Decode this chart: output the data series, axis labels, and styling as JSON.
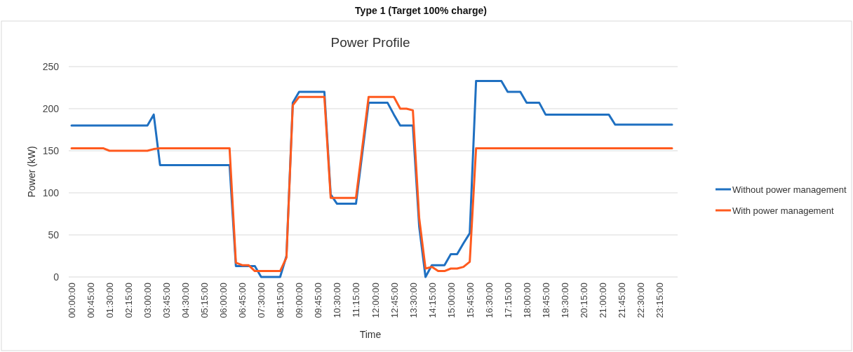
{
  "chart_data": {
    "type": "line",
    "title": "Type 1 (Target 100% charge)",
    "subtitle": "Power Profile",
    "xlabel": "Time",
    "ylabel": "Power (kW)",
    "categories": [
      "00:00:00",
      null,
      null,
      "00:45:00",
      null,
      null,
      "01:30:00",
      null,
      null,
      "02:15:00",
      null,
      null,
      "03:00:00",
      null,
      null,
      "03:45:00",
      null,
      null,
      "04:30:00",
      null,
      null,
      "05:15:00",
      null,
      null,
      "06:00:00",
      null,
      null,
      "06:45:00",
      null,
      null,
      "07:30:00",
      null,
      null,
      "08:15:00",
      null,
      null,
      "09:00:00",
      null,
      null,
      "09:45:00",
      null,
      null,
      "10:30:00",
      null,
      null,
      "11:15:00",
      null,
      null,
      "12:00:00",
      null,
      null,
      "12:45:00",
      null,
      null,
      "13:30:00",
      null,
      null,
      "14:15:00",
      null,
      null,
      "15:00:00",
      null,
      null,
      "15:45:00",
      null,
      null,
      "16:30:00",
      null,
      null,
      "17:15:00",
      null,
      null,
      "18:00:00",
      null,
      null,
      "18:45:00",
      null,
      null,
      "19:30:00",
      null,
      null,
      "20:15:00",
      null,
      null,
      "21:00:00",
      null,
      null,
      "21:45:00",
      null,
      null,
      "22:30:00",
      null,
      null,
      "23:15:00",
      null,
      null
    ],
    "series": [
      {
        "name": "Without power management",
        "color": "#1f70c1",
        "values": [
          180,
          180,
          180,
          180,
          180,
          180,
          180,
          180,
          180,
          180,
          180,
          180,
          180,
          193,
          133,
          133,
          133,
          133,
          133,
          133,
          133,
          133,
          133,
          133,
          133,
          133,
          13,
          13,
          13,
          13,
          0,
          0,
          0,
          0,
          25,
          207,
          220,
          220,
          220,
          220,
          220,
          98,
          87,
          87,
          87,
          87,
          147,
          207,
          207,
          207,
          207,
          193,
          180,
          180,
          180,
          60,
          0,
          14,
          14,
          14,
          27,
          27,
          40,
          52,
          233,
          233,
          233,
          233,
          233,
          220,
          220,
          220,
          207,
          207,
          207,
          193,
          193,
          193,
          193,
          193,
          193,
          193,
          193,
          193,
          193,
          193,
          181,
          181,
          181,
          181,
          181,
          181,
          181,
          181,
          181,
          181
        ]
      },
      {
        "name": "With power management",
        "color": "#ff5a1e",
        "values": [
          153,
          153,
          153,
          153,
          153,
          153,
          150,
          150,
          150,
          150,
          150,
          150,
          150,
          152,
          153,
          153,
          153,
          153,
          153,
          153,
          153,
          153,
          153,
          153,
          153,
          153,
          17,
          14,
          14,
          7,
          7,
          7,
          7,
          7,
          23,
          204,
          214,
          214,
          214,
          214,
          214,
          94,
          94,
          94,
          94,
          94,
          154,
          214,
          214,
          214,
          214,
          214,
          200,
          200,
          198,
          70,
          10,
          12,
          7,
          7,
          10,
          10,
          12,
          18,
          153,
          153,
          153,
          153,
          153,
          153,
          153,
          153,
          153,
          153,
          153,
          153,
          153,
          153,
          153,
          153,
          153,
          153,
          153,
          153,
          153,
          153,
          153,
          153,
          153,
          153,
          153,
          153,
          153,
          153,
          153,
          153
        ]
      }
    ],
    "ylim": [
      0,
      250
    ],
    "yticks": [
      0,
      50,
      100,
      150,
      200,
      250
    ],
    "grid": "y",
    "legend": "right"
  }
}
